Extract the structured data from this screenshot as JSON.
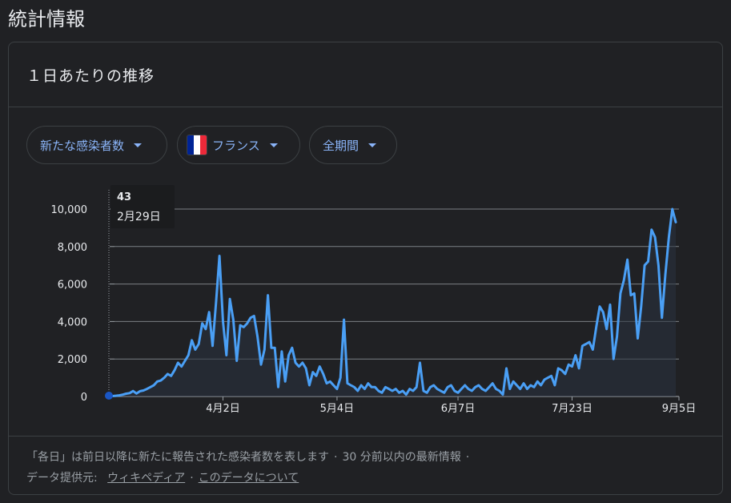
{
  "page": {
    "title": "統計情報"
  },
  "card": {
    "title": "１日あたりの推移"
  },
  "filters": {
    "metric": "新たな感染者数",
    "region": "フランス",
    "period": "全期間"
  },
  "colors": {
    "line": "#4a9ff5",
    "grid": "#9aa0a6",
    "text": "#e8eaed",
    "chip_text": "#8ab4f8",
    "flag": [
      "#002395",
      "#ffffff",
      "#ed2939"
    ]
  },
  "tooltip": {
    "value": "43",
    "date": "2月29日"
  },
  "footer": {
    "note": "「各日」は前日以降に新たに報告された感染者数を表します",
    "update": "30 分前以内の最新情報",
    "source_label": "データ提供元:",
    "source_link": "ウィキペディア",
    "about_link": "このデータについて"
  },
  "chart_data": {
    "type": "line",
    "title": "",
    "xlabel": "",
    "ylabel": "",
    "ylim": [
      0,
      10000
    ],
    "yticks": [
      0,
      2000,
      4000,
      6000,
      8000,
      10000
    ],
    "ytick_labels": [
      "0",
      "2,000",
      "4,000",
      "6,000",
      "8,000",
      "10,000"
    ],
    "xtick_labels": [
      "4月2日",
      "5月4日",
      "6月7日",
      "7月23日",
      "9月5日"
    ],
    "grid": true,
    "series": [
      {
        "values": [
          43,
          20,
          40,
          60,
          100,
          150,
          180,
          290,
          160,
          280,
          320,
          400,
          500,
          600,
          800,
          850,
          1000,
          1200,
          1100,
          1400,
          1800,
          1600,
          1900,
          2200,
          3000,
          2500,
          2800,
          3900,
          3600,
          4500,
          2700,
          5000,
          7500,
          4000,
          2200,
          5200,
          4100,
          1900,
          3800,
          3700,
          3900,
          4200,
          4300,
          3200,
          1700,
          2500,
          5400,
          2600,
          2600,
          500,
          2400,
          800,
          2200,
          2600,
          1800,
          1600,
          1800,
          1500,
          600,
          1300,
          1100,
          1600,
          1200,
          700,
          800,
          600,
          400,
          1000,
          4100,
          700,
          600,
          500,
          300,
          600,
          400,
          700,
          500,
          500,
          300,
          200,
          500,
          400,
          300,
          400,
          200,
          300,
          100,
          400,
          300,
          500,
          1800,
          300,
          200,
          500,
          600,
          400,
          300,
          200,
          500,
          600,
          300,
          200,
          400,
          600,
          400,
          300,
          500,
          600,
          400,
          300,
          500,
          700,
          400,
          300,
          100,
          1500,
          400,
          800,
          600,
          400,
          700,
          400,
          600,
          500,
          800,
          600,
          900,
          1000,
          1100,
          600,
          1500,
          1400,
          1200,
          1700,
          1600,
          2200,
          1500,
          2700,
          2800,
          2900,
          2500,
          3700,
          4800,
          4500,
          3600,
          4900,
          2000,
          3200,
          5500,
          6200,
          7300,
          5400,
          5500,
          3100,
          4800,
          7000,
          7200,
          8900,
          8500,
          7000,
          4200,
          6500,
          8500,
          10000,
          9300
        ]
      }
    ]
  }
}
